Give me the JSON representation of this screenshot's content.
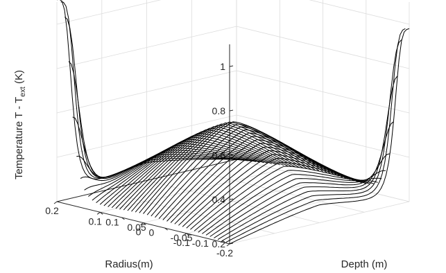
{
  "chart_data": {
    "type": "line",
    "view": "3d-waterfall",
    "title": "",
    "xlabel": "Radius(m)",
    "ylabel": "Depth (m)",
    "zlabel_main": "Temperature T - T",
    "zlabel_sub": "ext",
    "zlabel_unit": " (K)",
    "x_range": [
      -0.2,
      0.2
    ],
    "y_range": [
      -0.1,
      0.1
    ],
    "z_range": [
      0.2,
      1.1
    ],
    "x_ticks": [
      -0.2,
      -0.1,
      0,
      0.1,
      0.2
    ],
    "x_tick_labels": [
      "-0.2",
      "-0.1",
      "0",
      "0.1",
      "0.2"
    ],
    "y_ticks": [
      -0.1,
      -0.05,
      0,
      0.05,
      0.1
    ],
    "y_tick_labels": [
      "-0.1",
      "-0.05",
      "0",
      "0.05",
      "0.1"
    ],
    "z_ticks": [
      0.2,
      0.4,
      0.6,
      0.8,
      1.0
    ],
    "z_tick_labels": [
      "0.2",
      "0.4",
      "0.6",
      "0.8",
      "1"
    ],
    "grid": true,
    "line_color": "#000000",
    "num_curves": 45,
    "surface": {
      "x_peak_max": 1.11,
      "y_peak_max": 0.98,
      "saddle_min": 0.56,
      "x_edge_min": 0.2,
      "y_edge_min": 0.24,
      "x_edge_max": 0.28
    }
  }
}
